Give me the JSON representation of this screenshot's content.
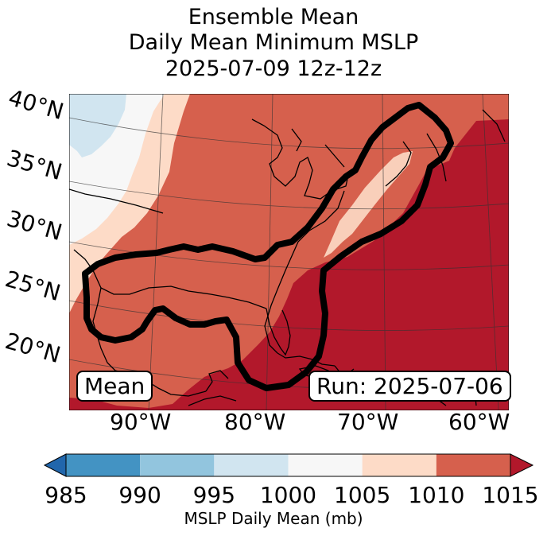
{
  "title": {
    "line1": "Ensemble Mean",
    "line2": "Daily Mean Minimum MSLP",
    "line3": "2025-07-09 12z-12z"
  },
  "map": {
    "lat_labels": [
      "40°N",
      "35°N",
      "30°N",
      "25°N",
      "20°N"
    ],
    "lon_labels": [
      "90°W",
      "80°W",
      "70°W",
      "60°W"
    ],
    "mean_box": "Mean",
    "run_box": "Run: 2025-07-06",
    "contour_color": "#000000",
    "region_colors": {
      "lt1000_light_blue": "#d1e5f0",
      "1000_1005_white": "#f7f7f7",
      "1005_1010_peach": "#fddbc7",
      "1010_1015_salmon": "#d6604d",
      "gt1015_dark_red": "#b2182b"
    }
  },
  "colorbar": {
    "label": "MSLP Daily Mean (mb)",
    "ticks": [
      "985",
      "990",
      "995",
      "1000",
      "1005",
      "1010",
      "1015"
    ],
    "bins": [
      {
        "from": 985,
        "to": 990,
        "color": "#4393c3"
      },
      {
        "from": 990,
        "to": 995,
        "color": "#92c5de"
      },
      {
        "from": 995,
        "to": 1000,
        "color": "#d1e5f0"
      },
      {
        "from": 1000,
        "to": 1005,
        "color": "#f7f7f7"
      },
      {
        "from": 1005,
        "to": 1010,
        "color": "#fddbc7"
      },
      {
        "from": 1010,
        "to": 1015,
        "color": "#d6604d"
      }
    ],
    "under_color": "#2166ac",
    "over_color": "#b2182b"
  }
}
